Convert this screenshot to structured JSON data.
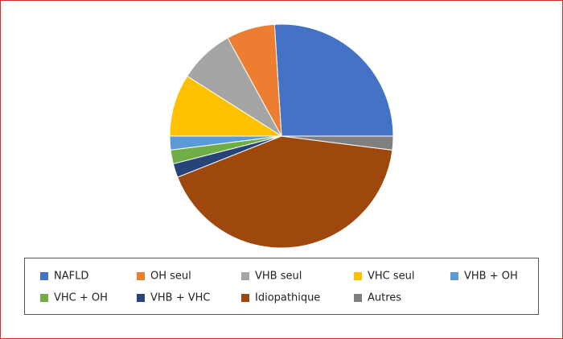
{
  "chart_data": {
    "type": "pie",
    "categories": [
      "NAFLD",
      "OH seul",
      "VHB seul",
      "VHC seul",
      "VHB + OH",
      "VHC + OH",
      "VHB + VHC",
      "Idiopathique",
      "Autres"
    ],
    "values": [
      26,
      7,
      8,
      9,
      2,
      2,
      2,
      42,
      2
    ],
    "colors": [
      "#4472c4",
      "#ed7d31",
      "#a5a5a5",
      "#ffc000",
      "#5b9bd5",
      "#70ad47",
      "#264478",
      "#9e480e",
      "#7f7f7f"
    ],
    "start_angle": 90,
    "direction": "counterclockwise",
    "legend": "bottom"
  }
}
